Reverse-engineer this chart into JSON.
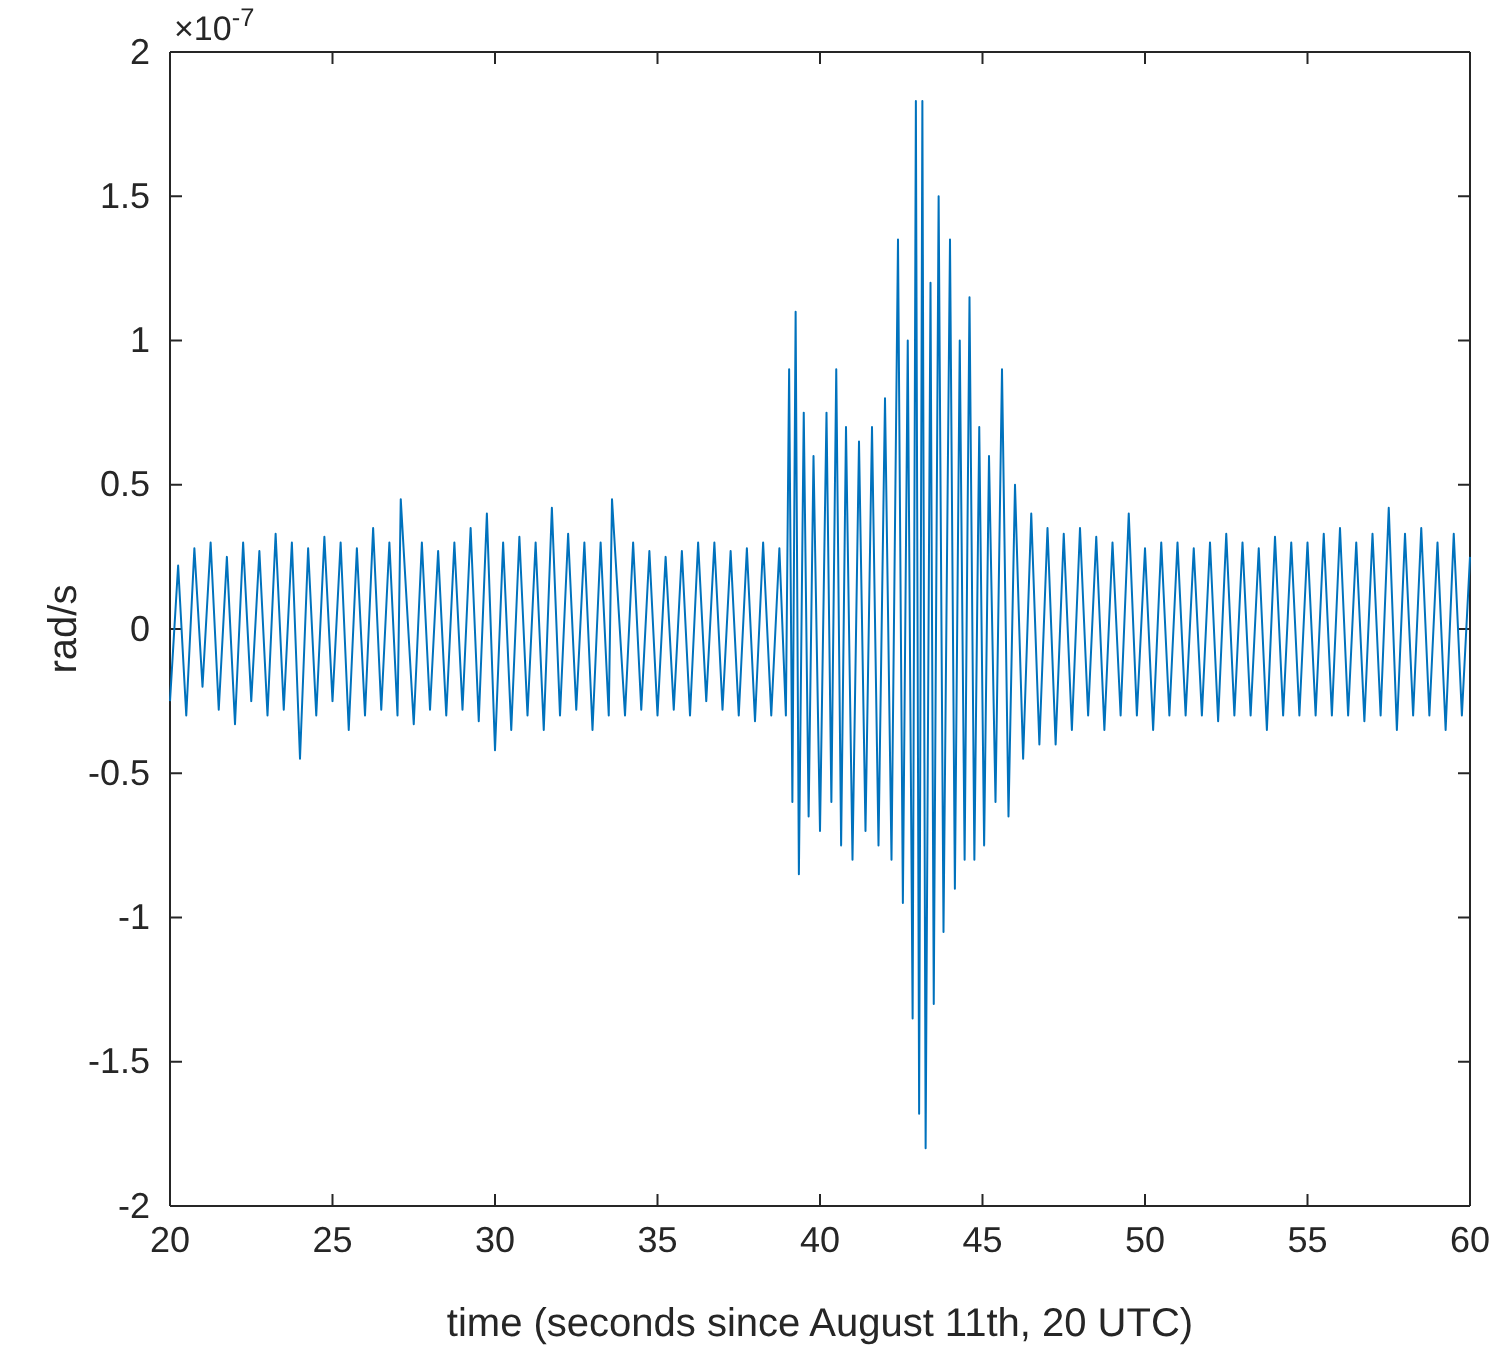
{
  "chart_data": {
    "type": "line",
    "xlabel": "time (seconds since August 11th, 20 UTC)",
    "ylabel": "rad/s",
    "annotations": [
      "×10$^{-7}$"
    ],
    "xlim": [
      20,
      60
    ],
    "xticks": [
      20,
      25,
      30,
      35,
      40,
      45,
      50,
      55,
      60
    ],
    "ylim": [
      -2,
      2
    ],
    "yticks": [
      -2,
      -1.5,
      -1,
      -0.5,
      0,
      0.5,
      1,
      1.5,
      2
    ],
    "grid": false,
    "series": [
      {
        "color": "#0072bd",
        "x": [
          20,
          20.25,
          20.5,
          20.75,
          21,
          21.25,
          21.5,
          21.75,
          22,
          22.25,
          22.5,
          22.75,
          23,
          23.25,
          23.5,
          23.75,
          24,
          24.25,
          24.5,
          24.75,
          25,
          25.25,
          25.5,
          25.75,
          26,
          26.25,
          26.5,
          26.75,
          27,
          27.1,
          27.5,
          27.75,
          28,
          28.25,
          28.5,
          28.75,
          29,
          29.25,
          29.5,
          29.75,
          30,
          30.25,
          30.5,
          30.75,
          31,
          31.25,
          31.5,
          31.75,
          32,
          32.25,
          32.5,
          32.75,
          33,
          33.25,
          33.5,
          33.6,
          34,
          34.25,
          34.5,
          34.75,
          35,
          35.25,
          35.5,
          35.75,
          36,
          36.25,
          36.5,
          36.75,
          37,
          37.25,
          37.5,
          37.75,
          38,
          38.25,
          38.5,
          38.75,
          38.95,
          39.05,
          39.15,
          39.25,
          39.35,
          39.5,
          39.65,
          39.8,
          40,
          40.2,
          40.35,
          40.5,
          40.65,
          40.8,
          41,
          41.2,
          41.4,
          41.6,
          41.8,
          42,
          42.2,
          42.4,
          42.55,
          42.7,
          42.85,
          42.95,
          43.05,
          43.15,
          43.25,
          43.4,
          43.5,
          43.65,
          43.8,
          44,
          44.15,
          44.3,
          44.45,
          44.6,
          44.75,
          44.9,
          45.05,
          45.2,
          45.4,
          45.6,
          45.8,
          46,
          46.25,
          46.5,
          46.75,
          47,
          47.25,
          47.5,
          47.75,
          48,
          48.25,
          48.5,
          48.75,
          49,
          49.25,
          49.5,
          49.75,
          50,
          50.25,
          50.5,
          50.75,
          51,
          51.25,
          51.5,
          51.75,
          52,
          52.25,
          52.5,
          52.75,
          53,
          53.25,
          53.5,
          53.75,
          54,
          54.25,
          54.5,
          54.75,
          55,
          55.25,
          55.5,
          55.75,
          56,
          56.25,
          56.5,
          56.75,
          57,
          57.25,
          57.5,
          57.75,
          58,
          58.25,
          58.5,
          58.75,
          59,
          59.25,
          59.5,
          59.75,
          60
        ],
        "values": [
          -0.25,
          0.22,
          -0.3,
          0.28,
          -0.2,
          0.3,
          -0.28,
          0.25,
          -0.33,
          0.3,
          -0.25,
          0.27,
          -0.3,
          0.33,
          -0.28,
          0.3,
          -0.45,
          0.28,
          -0.3,
          0.32,
          -0.25,
          0.3,
          -0.35,
          0.28,
          -0.3,
          0.35,
          -0.28,
          0.3,
          -0.3,
          0.45,
          -0.33,
          0.3,
          -0.28,
          0.27,
          -0.3,
          0.3,
          -0.28,
          0.35,
          -0.32,
          0.4,
          -0.42,
          0.3,
          -0.35,
          0.32,
          -0.3,
          0.3,
          -0.35,
          0.42,
          -0.3,
          0.33,
          -0.28,
          0.3,
          -0.35,
          0.3,
          -0.3,
          0.45,
          -0.3,
          0.3,
          -0.28,
          0.27,
          -0.3,
          0.25,
          -0.28,
          0.27,
          -0.3,
          0.3,
          -0.25,
          0.3,
          -0.28,
          0.27,
          -0.3,
          0.28,
          -0.32,
          0.3,
          -0.3,
          0.28,
          -0.3,
          0.9,
          -0.6,
          1.1,
          -0.85,
          0.75,
          -0.65,
          0.6,
          -0.7,
          0.75,
          -0.6,
          0.9,
          -0.75,
          0.7,
          -0.8,
          0.65,
          -0.7,
          0.7,
          -0.75,
          0.8,
          -0.8,
          1.35,
          -0.95,
          1.0,
          -1.35,
          1.83,
          -1.68,
          1.83,
          -1.8,
          1.2,
          -1.3,
          1.5,
          -1.05,
          1.35,
          -0.9,
          1.0,
          -0.8,
          1.15,
          -0.8,
          0.7,
          -0.75,
          0.6,
          -0.6,
          0.9,
          -0.65,
          0.5,
          -0.45,
          0.4,
          -0.4,
          0.35,
          -0.4,
          0.33,
          -0.35,
          0.35,
          -0.3,
          0.32,
          -0.35,
          0.3,
          -0.3,
          0.4,
          -0.3,
          0.28,
          -0.35,
          0.3,
          -0.3,
          0.3,
          -0.3,
          0.28,
          -0.3,
          0.3,
          -0.32,
          0.33,
          -0.3,
          0.3,
          -0.3,
          0.28,
          -0.35,
          0.32,
          -0.3,
          0.3,
          -0.3,
          0.3,
          -0.3,
          0.33,
          -0.3,
          0.35,
          -0.3,
          0.3,
          -0.32,
          0.33,
          -0.3,
          0.42,
          -0.35,
          0.33,
          -0.3,
          0.35,
          -0.3,
          0.3,
          -0.35,
          0.33,
          -0.3,
          0.25
        ]
      }
    ]
  }
}
